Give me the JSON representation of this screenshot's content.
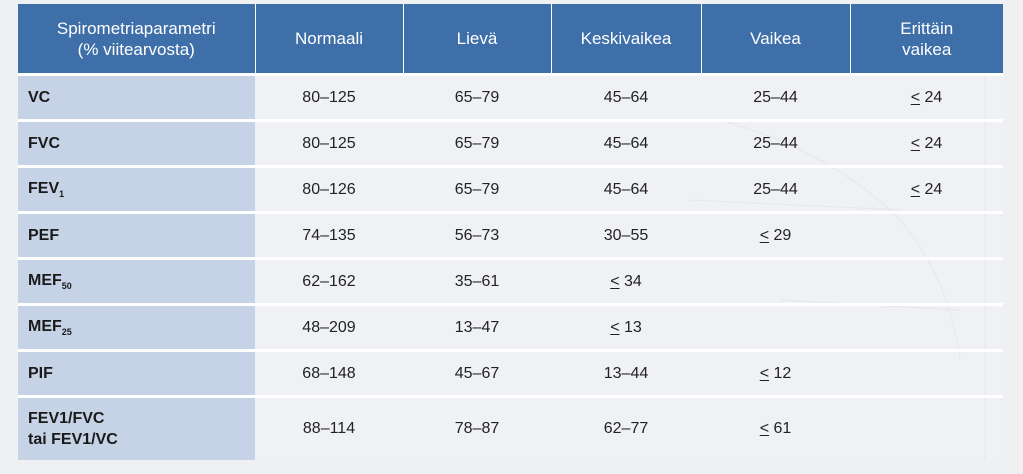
{
  "table": {
    "headers": [
      {
        "line1": "Spirometriaparametri",
        "line2": "(% viitearvosta)"
      },
      {
        "line1": "Normaali",
        "line2": ""
      },
      {
        "line1": "Lievä",
        "line2": ""
      },
      {
        "line1": "Keskivaikea",
        "line2": ""
      },
      {
        "line1": "Vaikea",
        "line2": ""
      },
      {
        "line1": "Erittäin",
        "line2": "vaikea"
      }
    ],
    "rows": [
      {
        "param": "VC",
        "sub": "",
        "param_line2": "",
        "cells": [
          "80–125",
          "65–79",
          "45–64",
          "25–44",
          "24"
        ],
        "le": [
          false,
          false,
          false,
          false,
          true
        ]
      },
      {
        "param": "FVC",
        "sub": "",
        "param_line2": "",
        "cells": [
          "80–125",
          "65–79",
          "45–64",
          "25–44",
          "24"
        ],
        "le": [
          false,
          false,
          false,
          false,
          true
        ]
      },
      {
        "param": "FEV",
        "sub": "1",
        "param_line2": "",
        "cells": [
          "80–126",
          "65–79",
          "45–64",
          "25–44",
          "24"
        ],
        "le": [
          false,
          false,
          false,
          false,
          true
        ]
      },
      {
        "param": "PEF",
        "sub": "",
        "param_line2": "",
        "cells": [
          "74–135",
          "56–73",
          "30–55",
          "29",
          ""
        ],
        "le": [
          false,
          false,
          false,
          true,
          false
        ]
      },
      {
        "param": "MEF",
        "sub": "50",
        "param_line2": "",
        "cells": [
          "62–162",
          "35–61",
          "34",
          "",
          ""
        ],
        "le": [
          false,
          false,
          true,
          false,
          false
        ]
      },
      {
        "param": "MEF",
        "sub": "25",
        "param_line2": "",
        "cells": [
          "48–209",
          "13–47",
          "13",
          "",
          ""
        ],
        "le": [
          false,
          false,
          true,
          false,
          false
        ]
      },
      {
        "param": "PIF",
        "sub": "",
        "param_line2": "",
        "cells": [
          "68–148",
          "45–67",
          "13–44",
          "12",
          ""
        ],
        "le": [
          false,
          false,
          false,
          true,
          false
        ]
      },
      {
        "param": "FEV1/FVC",
        "sub": "",
        "param_line2": "tai FEV1/VC",
        "cells": [
          "88–114",
          "78–87",
          "62–77",
          "61",
          ""
        ],
        "le": [
          false,
          false,
          false,
          true,
          false
        ]
      }
    ]
  },
  "colors": {
    "header_bg": "#3f6fa8",
    "param_bg": "#c6d2e5"
  }
}
